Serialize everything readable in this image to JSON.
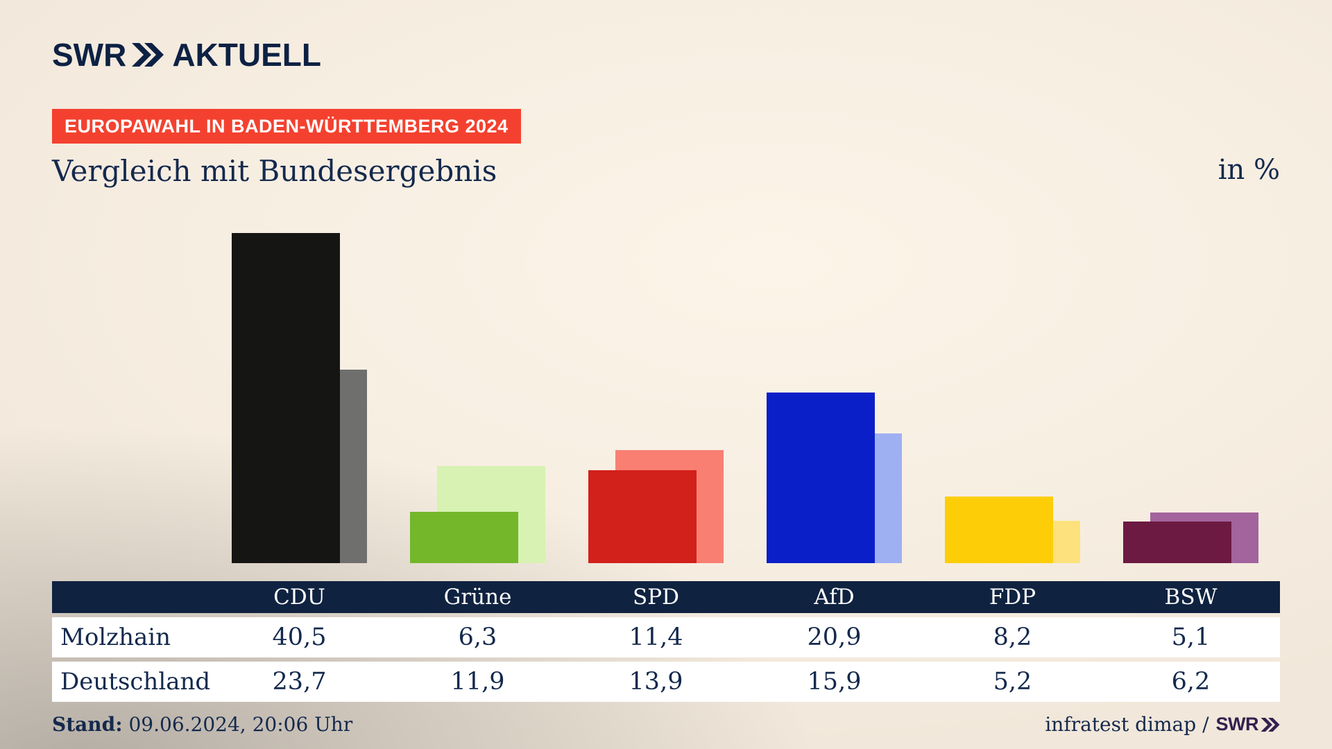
{
  "brand": {
    "name": "SWR",
    "suffix": "AKTUELL",
    "chevron_icon": "double-chevron-right",
    "color": "#0d2144"
  },
  "header": {
    "badge": "EUROPAWAHL IN BADEN-WÜRTTEMBERG 2024",
    "badge_color": "#f4412f",
    "title": "Vergleich mit Bundesergebnis",
    "unit_label": "in %"
  },
  "chart_data": {
    "type": "bar",
    "categories": [
      "CDU",
      "Grüne",
      "SPD",
      "AfD",
      "FDP",
      "BSW"
    ],
    "series": [
      {
        "name": "Molzhain",
        "values": [
          40.5,
          6.3,
          11.4,
          20.9,
          8.2,
          5.1
        ],
        "colors": [
          "#151513",
          "#74b72b",
          "#d2201a",
          "#0a1fc8",
          "#fdce07",
          "#6c1a42"
        ]
      },
      {
        "name": "Deutschland",
        "values": [
          23.7,
          11.9,
          13.9,
          15.9,
          5.2,
          6.2
        ],
        "colors": [
          "#6f6f6e",
          "#d7f2b2",
          "#f97f73",
          "#9fb0f2",
          "#fce17c",
          "#a3639c"
        ]
      }
    ],
    "title": "Vergleich mit Bundesergebnis",
    "xlabel": "",
    "ylabel": "in %",
    "ylim": [
      0,
      43
    ],
    "grid": false,
    "legend_position": "table-below",
    "value_format": "decimal-comma"
  },
  "table": {
    "header": [
      "CDU",
      "Grüne",
      "SPD",
      "AfD",
      "FDP",
      "BSW"
    ],
    "rows": [
      {
        "label": "Molzhain",
        "values": [
          "40,5",
          "6,3",
          "11,4",
          "20,9",
          "8,2",
          "5,1"
        ]
      },
      {
        "label": "Deutschland",
        "values": [
          "23,7",
          "11,9",
          "13,9",
          "15,9",
          "5,2",
          "6,2"
        ]
      }
    ]
  },
  "footer": {
    "stand_label": "Stand:",
    "stand_value": " 09.06.2024, 20:06 Uhr",
    "source_text": "infratest dimap / ",
    "source_logo": "SWR"
  }
}
